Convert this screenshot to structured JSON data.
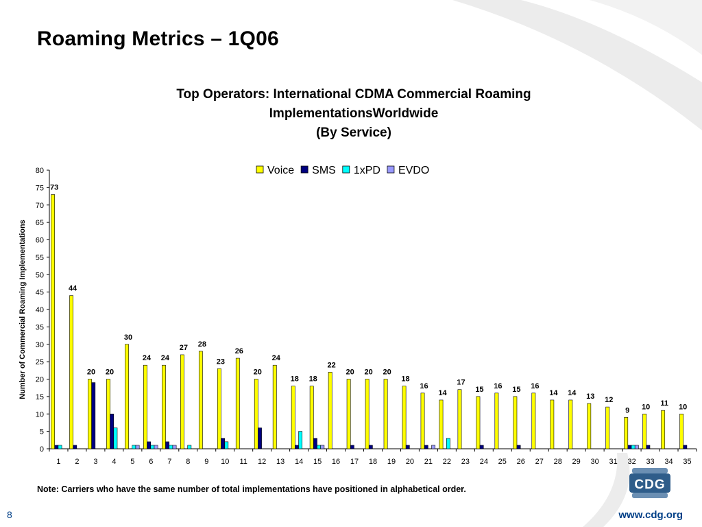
{
  "slide": {
    "title": "Roaming Metrics – 1Q06",
    "note": "Note: Carriers who have the same number of total implementations have positioned in alphabetical order.",
    "page_number": "8",
    "website": "www.cdg.org",
    "logo_text": "CDG"
  },
  "chart_data": {
    "type": "bar",
    "title_lines": [
      "Top Operators: International CDMA Commercial Roaming",
      "ImplementationsWorldwide",
      "(By Service)"
    ],
    "xlabel": "",
    "ylabel": "Number of Commercial Roaming Implementations",
    "ylim": [
      0,
      80
    ],
    "ytick_step": 5,
    "legend_position": "top",
    "categories": [
      "1",
      "2",
      "3",
      "4",
      "5",
      "6",
      "7",
      "8",
      "9",
      "10",
      "11",
      "12",
      "13",
      "14",
      "15",
      "16",
      "17",
      "18",
      "19",
      "20",
      "21",
      "22",
      "23",
      "24",
      "25",
      "26",
      "27",
      "28",
      "29",
      "30",
      "31",
      "32",
      "33",
      "34",
      "35"
    ],
    "series": [
      {
        "name": "Voice",
        "color": "#ffff00",
        "values": [
          73,
          44,
          20,
          20,
          30,
          24,
          24,
          27,
          28,
          23,
          26,
          20,
          24,
          18,
          18,
          22,
          20,
          20,
          20,
          18,
          16,
          14,
          17,
          15,
          16,
          15,
          16,
          14,
          14,
          13,
          12,
          9,
          10,
          11,
          10
        ]
      },
      {
        "name": "SMS",
        "color": "#000080",
        "values": [
          1,
          1,
          19,
          10,
          0,
          2,
          2,
          0,
          0,
          3,
          0,
          6,
          0,
          1,
          3,
          0,
          1,
          1,
          0,
          1,
          1,
          0,
          0,
          1,
          0,
          1,
          0,
          0,
          0,
          0,
          0,
          1,
          1,
          0,
          1
        ]
      },
      {
        "name": "1xPD",
        "color": "#00ffff",
        "values": [
          1,
          0,
          0,
          6,
          1,
          1,
          1,
          1,
          0,
          2,
          0,
          0,
          0,
          5,
          1,
          0,
          0,
          0,
          0,
          0,
          0,
          3,
          0,
          0,
          0,
          0,
          0,
          0,
          0,
          0,
          0,
          1,
          0,
          0,
          0
        ]
      },
      {
        "name": "EVDO",
        "color": "#9999ff",
        "values": [
          0,
          0,
          0,
          0,
          1,
          1,
          1,
          0,
          0,
          0,
          0,
          0,
          0,
          0,
          1,
          0,
          0,
          0,
          0,
          0,
          1,
          0,
          0,
          0,
          0,
          0,
          0,
          0,
          0,
          0,
          0,
          1,
          0,
          0,
          0
        ]
      }
    ],
    "data_labels": "Voice",
    "grid": false
  }
}
